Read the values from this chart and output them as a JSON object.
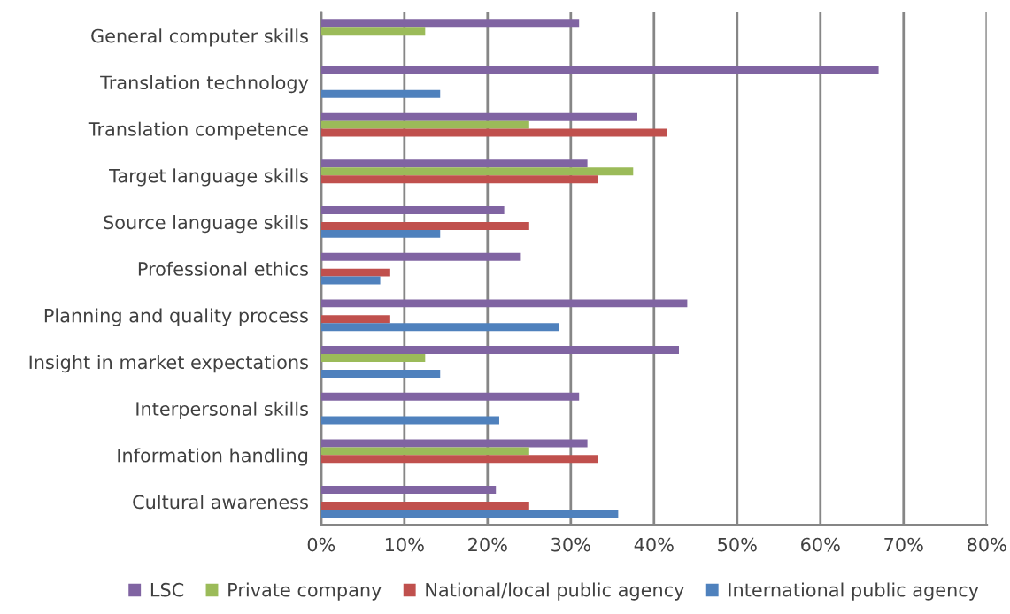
{
  "chart_data": {
    "type": "bar",
    "orientation": "horizontal",
    "categories": [
      "General computer skills",
      "Translation technology",
      "Translation competence",
      "Target language skills",
      "Source language skills",
      "Professional ethics",
      "Planning and quality process",
      "Insight in market expectations",
      "Interpersonal skills",
      "Information handling",
      "Cultural awareness"
    ],
    "series": [
      {
        "name": "LSC",
        "color": "#8064a2",
        "values": [
          31,
          67,
          38,
          32,
          22,
          24,
          44,
          43,
          31,
          32,
          21
        ]
      },
      {
        "name": "Private company",
        "color": "#9bbb59",
        "values": [
          12.5,
          null,
          25,
          37.5,
          null,
          null,
          null,
          12.5,
          null,
          25,
          null
        ]
      },
      {
        "name": "National/local public agency",
        "color": "#c0504d",
        "values": [
          null,
          null,
          41.6,
          33.3,
          25,
          8.3,
          8.3,
          null,
          null,
          33.3,
          25
        ]
      },
      {
        "name": "International public agency",
        "color": "#4f81bd",
        "values": [
          null,
          14.3,
          null,
          null,
          14.3,
          7.1,
          28.6,
          14.3,
          21.4,
          null,
          35.7
        ]
      }
    ],
    "xlim": [
      0,
      80
    ],
    "xticks": [
      {
        "value": 0,
        "label": "0%"
      },
      {
        "value": 10,
        "label": "10%"
      },
      {
        "value": 20,
        "label": "20%"
      },
      {
        "value": 30,
        "label": "30%"
      },
      {
        "value": 40,
        "label": "40%"
      },
      {
        "value": 50,
        "label": "50%"
      },
      {
        "value": 60,
        "label": "60%"
      },
      {
        "value": 70,
        "label": "70%"
      },
      {
        "value": 80,
        "label": "80%"
      }
    ],
    "grid": "x",
    "legend": "bottom"
  }
}
